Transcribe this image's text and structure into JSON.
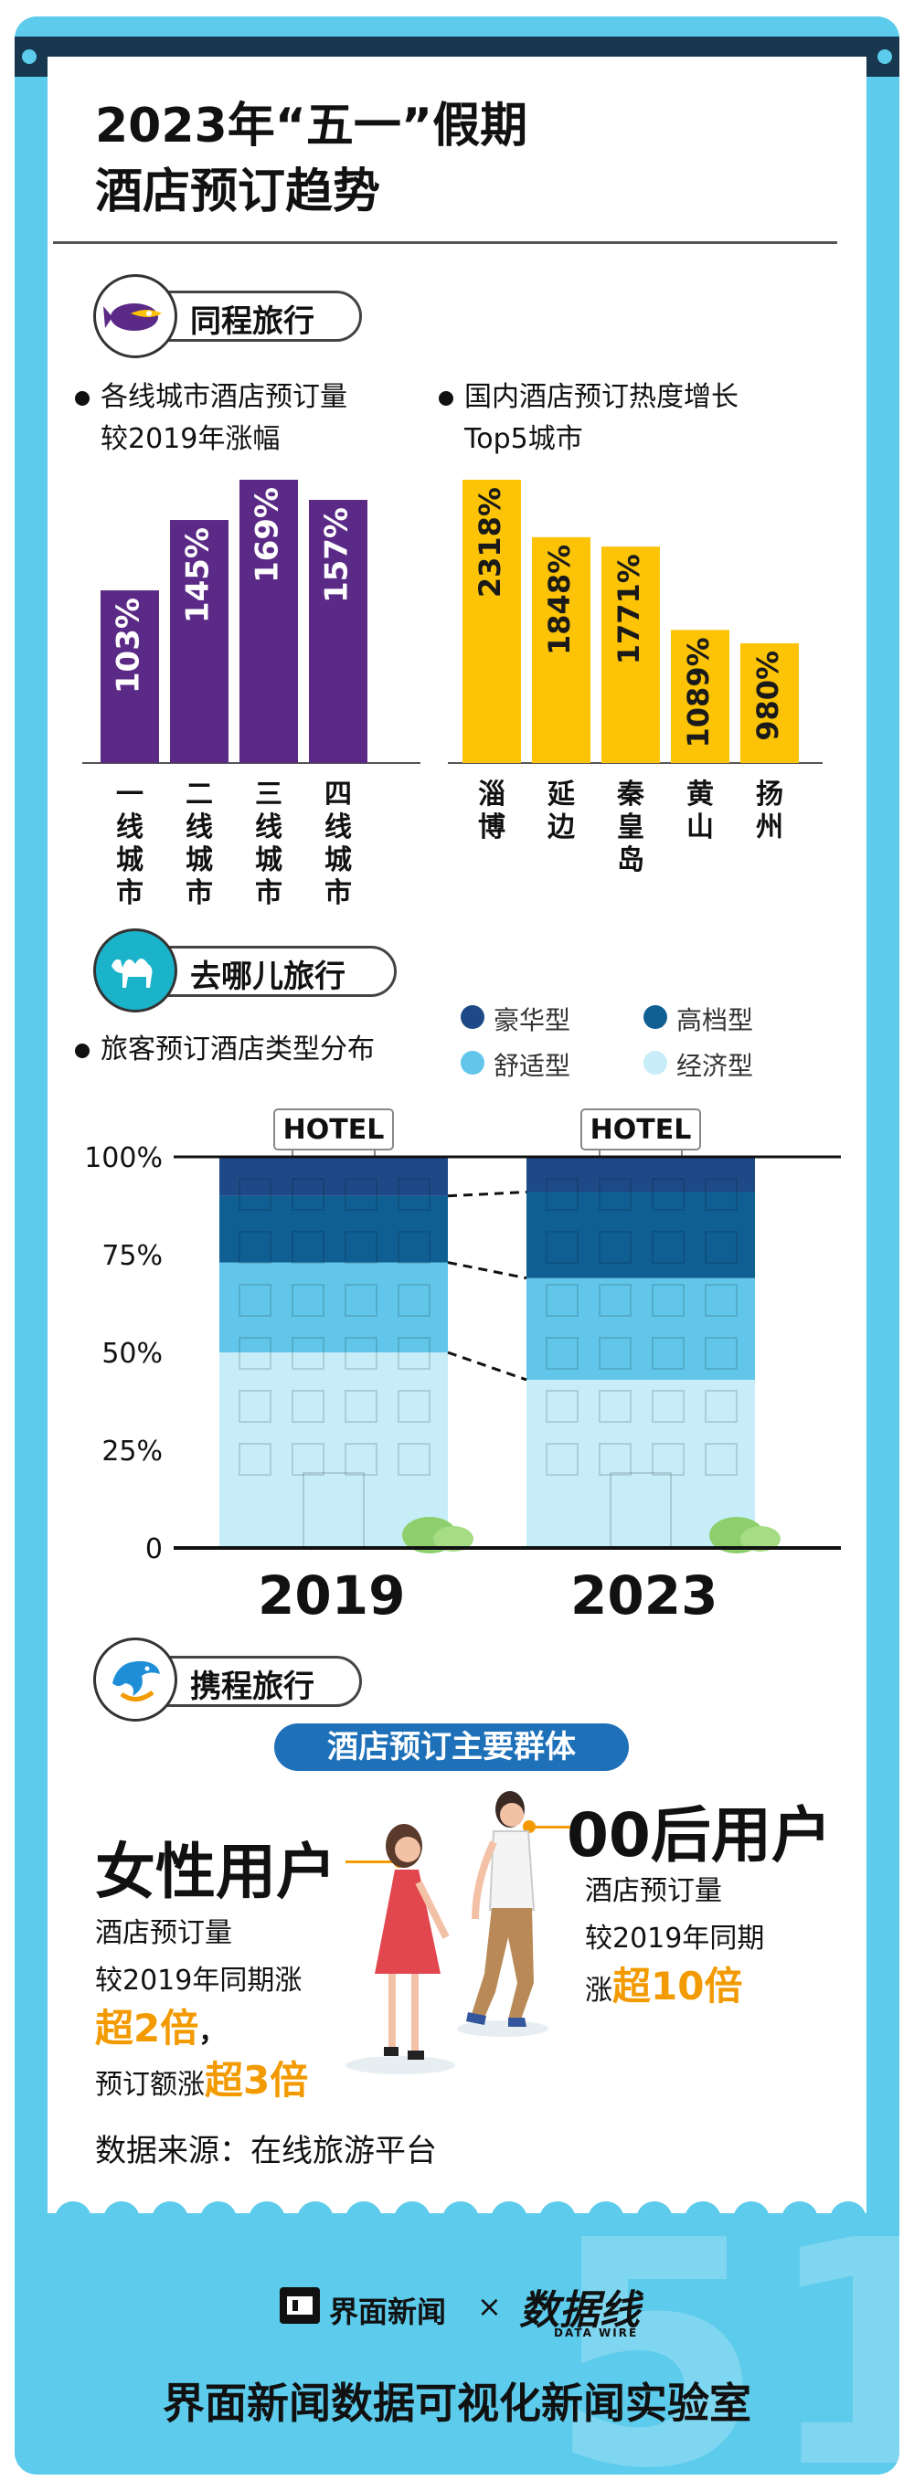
{
  "title": {
    "line1": "2023年“五一”假期",
    "line2": "酒店预订趋势"
  },
  "sections": {
    "tongcheng": {
      "name": "同程旅行"
    },
    "qunar": {
      "name": "去哪儿旅行"
    },
    "ctrip": {
      "name": "携程旅行"
    }
  },
  "colors": {
    "frame": "#5ccbec",
    "purple": "#5b2a86",
    "yellow": "#fcc307",
    "luxury": "#1d4a86",
    "upscale": "#0f5f93",
    "comfort": "#61c6ea",
    "economy": "#c6edf8",
    "highlight": "#f29a00",
    "badge": "#1e70b8"
  },
  "chart_data": [
    {
      "type": "bar",
      "title": "各线城市酒店预订量较2019年涨幅",
      "title_lines": [
        "各线城市酒店预订量",
        "较2019年涨幅"
      ],
      "categories": [
        "一线城市",
        "二线城市",
        "三线城市",
        "四线城市"
      ],
      "values": [
        103,
        145,
        169,
        157
      ],
      "value_labels": [
        "103%",
        "145%",
        "169%",
        "157%"
      ],
      "unit": "%",
      "ylim": [
        0,
        169
      ],
      "color": "#5b2a86"
    },
    {
      "type": "bar",
      "title": "国内酒店预订热度增长Top5城市",
      "title_lines": [
        "国内酒店预订热度增长",
        "Top5城市"
      ],
      "categories": [
        "淄博",
        "延边",
        "秦皇岛",
        "黄山",
        "扬州"
      ],
      "values": [
        2318,
        1848,
        1771,
        1089,
        980
      ],
      "value_labels": [
        "2318%",
        "1848%",
        "1771%",
        "1089%",
        "980%"
      ],
      "unit": "%",
      "ylim": [
        0,
        2318
      ],
      "color": "#fcc307"
    },
    {
      "type": "bar",
      "stacked": true,
      "title": "旅客预订酒店类型分布",
      "categories": [
        "2019",
        "2023"
      ],
      "series": [
        {
          "name": "经济型",
          "values": [
            50,
            43
          ],
          "color": "#c6edf8"
        },
        {
          "name": "舒适型",
          "values": [
            23,
            26
          ],
          "color": "#61c6ea"
        },
        {
          "name": "高档型",
          "values": [
            17,
            22
          ],
          "color": "#0f5f93"
        },
        {
          "name": "豪华型",
          "values": [
            10,
            9
          ],
          "color": "#1d4a86"
        }
      ],
      "legend_order": [
        "豪华型",
        "高档型",
        "舒适型",
        "经济型"
      ],
      "yticks": [
        "100%",
        "75%",
        "50%",
        "25%",
        "0"
      ],
      "ylim": [
        0,
        100
      ],
      "sign_text": "HOTEL"
    }
  ],
  "ctrip": {
    "badge": "酒店预订主要群体",
    "female": {
      "title": "女性用户",
      "line1": "酒店预订量",
      "line2": "较2019年同期涨",
      "hl1": "超2倍",
      "comma": "，",
      "line3": "预订额涨",
      "hl2": "超3倍"
    },
    "gen00": {
      "title": "00后用户",
      "line1": "酒店预订量",
      "line2": "较2019年同期",
      "line3": "涨",
      "hl1": "超10倍"
    }
  },
  "source": "数据来源：在线旅游平台",
  "footer": {
    "brand1": "界面新闻",
    "times": "×",
    "brand2": "数据线",
    "brand2_sub": "DATA WIRE",
    "main": "界面新闻数据可视化新闻实验室"
  }
}
